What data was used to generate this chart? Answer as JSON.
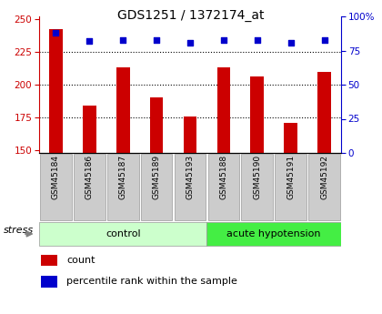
{
  "title": "GDS1251 / 1372174_at",
  "categories": [
    "GSM45184",
    "GSM45186",
    "GSM45187",
    "GSM45189",
    "GSM45193",
    "GSM45188",
    "GSM45190",
    "GSM45191",
    "GSM45192"
  ],
  "bar_values": [
    242,
    184,
    213,
    190,
    176,
    213,
    206,
    171,
    210
  ],
  "percentile_values": [
    88,
    82,
    83,
    83,
    81,
    83,
    83,
    81,
    83
  ],
  "bar_color": "#cc0000",
  "dot_color": "#0000cc",
  "ylim_left": [
    148,
    252
  ],
  "ylim_right": [
    0,
    100
  ],
  "yticks_left": [
    150,
    175,
    200,
    225,
    250
  ],
  "yticks_right": [
    0,
    25,
    50,
    75,
    100
  ],
  "n_control": 5,
  "n_acute": 4,
  "control_label": "control",
  "acute_label": "acute hypotension",
  "stress_label": "stress",
  "legend_count": "count",
  "legend_percentile": "percentile rank within the sample",
  "bg_color_control": "#ccffcc",
  "bg_color_acute": "#44ee44",
  "bg_color_xticklabels": "#cccccc",
  "left_tick_color": "#cc0000",
  "right_tick_color": "#0000cc",
  "bar_width": 0.4
}
